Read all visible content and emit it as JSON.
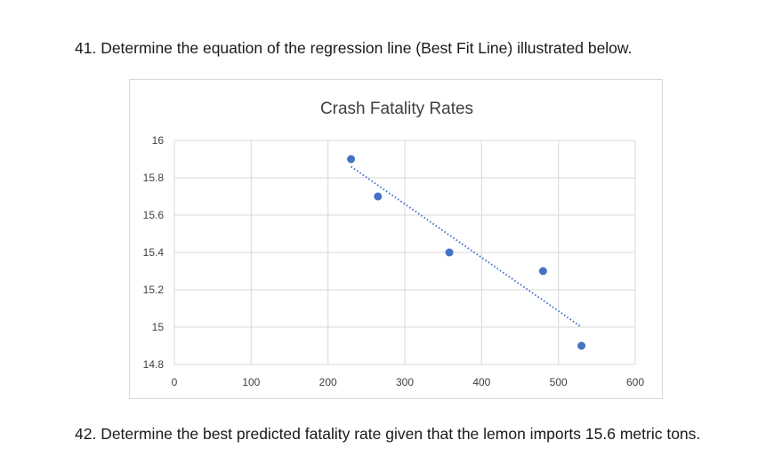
{
  "question41": "41. Determine the equation of the regression line (Best Fit Line) illustrated below.",
  "question42": "42. Determine the best predicted fatality rate given that the lemon imports 15.6 metric tons.",
  "colors": {
    "marker": "#4472c4",
    "trendline": "#4472c4",
    "grid": "#d9d9d9",
    "text": "#404040"
  },
  "chart_data": {
    "type": "scatter",
    "title": "Crash Fatality Rates",
    "xlabel": "",
    "ylabel": "",
    "xlim": [
      0,
      600
    ],
    "ylim": [
      14.8,
      16
    ],
    "x_ticks": [
      "0",
      "100",
      "200",
      "300",
      "400",
      "500",
      "600"
    ],
    "y_ticks": [
      "16",
      "15.8",
      "15.6",
      "15.4",
      "15.2",
      "15",
      "14.8"
    ],
    "x_tick_values": [
      0,
      100,
      200,
      300,
      400,
      500,
      600
    ],
    "y_tick_values": [
      16,
      15.8,
      15.6,
      15.4,
      15.2,
      15,
      14.8
    ],
    "grid": true,
    "series": [
      {
        "name": "Crash Fatality Rates",
        "x": [
          230,
          265,
          358,
          480,
          530
        ],
        "y": [
          15.9,
          15.7,
          15.4,
          15.3,
          14.9
        ]
      }
    ],
    "trendline": {
      "style": "dotted",
      "x_start": 230,
      "x_end": 530,
      "y_start": 15.86,
      "y_end": 15.0
    }
  }
}
